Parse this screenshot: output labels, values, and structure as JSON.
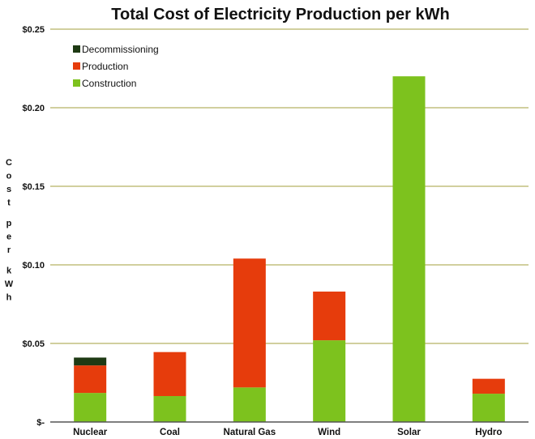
{
  "chart_data": {
    "type": "bar",
    "stacked": true,
    "title": "Total Cost of Electricity Production per kWh",
    "ylabel": "Cost per kWh",
    "xlabel": "",
    "categories": [
      "Nuclear",
      "Coal",
      "Natural Gas",
      "Wind",
      "Solar",
      "Hydro"
    ],
    "ylim": [
      0,
      0.25
    ],
    "yticks": [
      0,
      0.05,
      0.1,
      0.15,
      0.2,
      0.25
    ],
    "ytick_labels": [
      "$-",
      "$0.05",
      "$0.10",
      "$0.15",
      "$0.20",
      "$0.25"
    ],
    "grid": true,
    "legend_position": "top-left",
    "series": [
      {
        "name": "Construction",
        "color": "#7dc21e",
        "values": [
          0.0185,
          0.0165,
          0.022,
          0.052,
          0.22,
          0.018
        ]
      },
      {
        "name": "Production",
        "color": "#e63c0c",
        "values": [
          0.0175,
          0.028,
          0.082,
          0.031,
          0,
          0.0095
        ]
      },
      {
        "name": "Decommissioning",
        "color": "#1e3a14",
        "values": [
          0.005,
          0,
          0,
          0,
          0,
          0
        ]
      }
    ]
  }
}
